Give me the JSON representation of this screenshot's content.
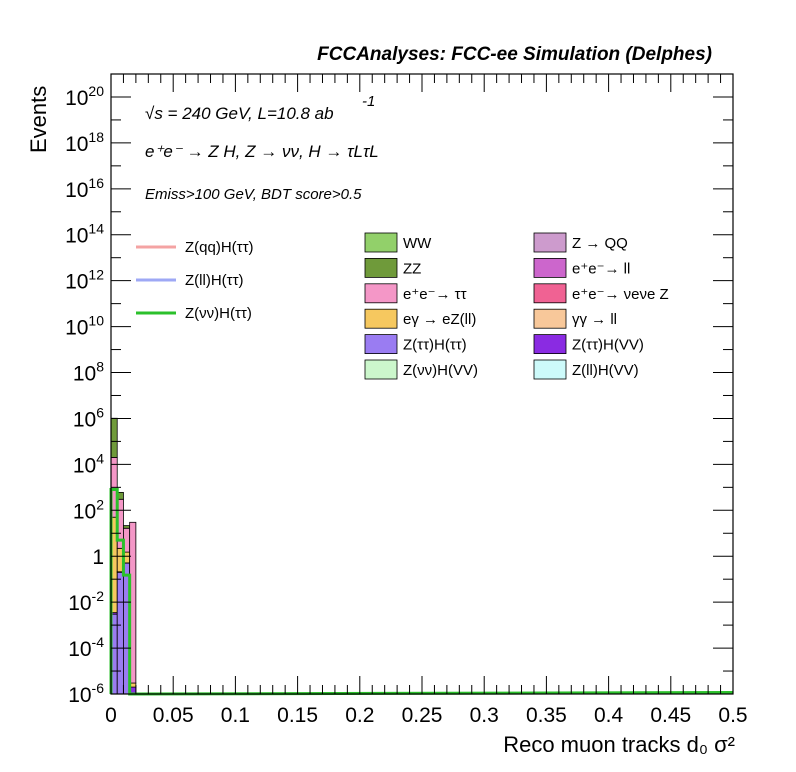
{
  "header": {
    "title": "FCCAnalyses: FCC-ee Simulation (Delphes)"
  },
  "annotations": {
    "line1": "√s = 240 GeV, L=10.8 ab",
    "line1_sup": "-1",
    "line2": "e⁺e⁻ → Z H, Z → νν, H → τLτL",
    "line3": "Emiss>100 GeV, BDT score>0.5"
  },
  "chart_data": {
    "type": "bar",
    "xlabel": "Reco muon tracks d₀ σ²",
    "ylabel": "Events",
    "xlim": [
      0,
      0.5
    ],
    "ylim": [
      1e-06,
      1e+21
    ],
    "yscale": "log",
    "x_ticks": [
      "0",
      "0.05",
      "0.1",
      "0.15",
      "0.2",
      "0.25",
      "0.3",
      "0.35",
      "0.4",
      "0.45",
      "0.5"
    ],
    "y_ticks": [
      {
        "base": "10",
        "exp": "-6",
        "value": 1e-06
      },
      {
        "base": "10",
        "exp": "-4",
        "value": 0.0001
      },
      {
        "base": "10",
        "exp": "-2",
        "value": 0.01
      },
      {
        "base": "1",
        "exp": "",
        "value": 1
      },
      {
        "base": "10",
        "exp": "2",
        "value": 100
      },
      {
        "base": "10",
        "exp": "4",
        "value": 10000
      },
      {
        "base": "10",
        "exp": "6",
        "value": 1000000
      },
      {
        "base": "10",
        "exp": "8",
        "value": 100000000
      },
      {
        "base": "10",
        "exp": "10",
        "value": 10000000000
      },
      {
        "base": "10",
        "exp": "12",
        "value": 1000000000000
      },
      {
        "base": "10",
        "exp": "14",
        "value": 100000000000000
      },
      {
        "base": "10",
        "exp": "16",
        "value": 10000000000000000
      },
      {
        "base": "10",
        "exp": "18",
        "value": 1000000000000000000
      },
      {
        "base": "10",
        "exp": "20",
        "value": 100000000000000000000
      }
    ],
    "bins": [
      {
        "x0": 0.0,
        "x1": 0.005
      },
      {
        "x0": 0.005,
        "x1": 0.01
      },
      {
        "x0": 0.01,
        "x1": 0.015
      },
      {
        "x0": 0.015,
        "x1": 0.02
      }
    ],
    "stacked_series": [
      {
        "name": "Z(ττ)H(ττ)",
        "color": "#9a7cf2",
        "values": [
          0.003,
          0.2,
          0.5,
          1e-06
        ]
      },
      {
        "name": "Z(ττ)H(VV)",
        "color": "#8a2be2",
        "values": [
          0.0005,
          0.01,
          0.01,
          1e-06
        ]
      },
      {
        "name": "eγ → eZ(ll)",
        "color": "#f6c85f",
        "values": [
          50,
          2,
          1,
          1e-06
        ]
      },
      {
        "name": "e⁺e⁻→ ττ",
        "color": "#f497c7",
        "values": [
          20000,
          300,
          15,
          30
        ]
      },
      {
        "name": "ZZ",
        "color": "#6f9a3a",
        "values": [
          1000000,
          300,
          5,
          1e-06
        ]
      }
    ],
    "line_series": [
      {
        "name": "Z(νν)H(ττ)",
        "color": "#2bc02b",
        "values": [
          800,
          5,
          0.15,
          1e-06
        ]
      }
    ],
    "legend_lines": [
      {
        "name": "Z(qq)H(ττ)",
        "color": "#f4a3a3"
      },
      {
        "name": "Z(ll)H(ττ)",
        "color": "#9ea8f5"
      },
      {
        "name": "Z(νν)H(ττ)",
        "color": "#2bc02b"
      }
    ],
    "legend_boxes_col1": [
      {
        "name": "WW",
        "color": "#92d06a"
      },
      {
        "name": "ZZ",
        "color": "#6f9a3a"
      },
      {
        "name": "e⁺e⁻→ ττ",
        "color": "#f497c7"
      },
      {
        "name": "eγ → eZ(ll)",
        "color": "#f6c85f"
      },
      {
        "name": "Z(ττ)H(ττ)",
        "color": "#9a7cf2"
      },
      {
        "name": "Z(νν)H(VV)",
        "color": "#ccf7cc"
      }
    ],
    "legend_boxes_col2": [
      {
        "name": "Z → QQ",
        "color": "#cd9bcd"
      },
      {
        "name": "e⁺e⁻→ ll",
        "color": "#cc66cc"
      },
      {
        "name": "e⁺e⁻→ νeνe Z",
        "color": "#f06293"
      },
      {
        "name": "γγ → ll",
        "color": "#f8c89a"
      },
      {
        "name": "Z(ττ)H(VV)",
        "color": "#8a2be2"
      },
      {
        "name": "Z(ll)H(VV)",
        "color": "#cdfafa"
      }
    ],
    "legend_placement": "top",
    "grid": false
  }
}
